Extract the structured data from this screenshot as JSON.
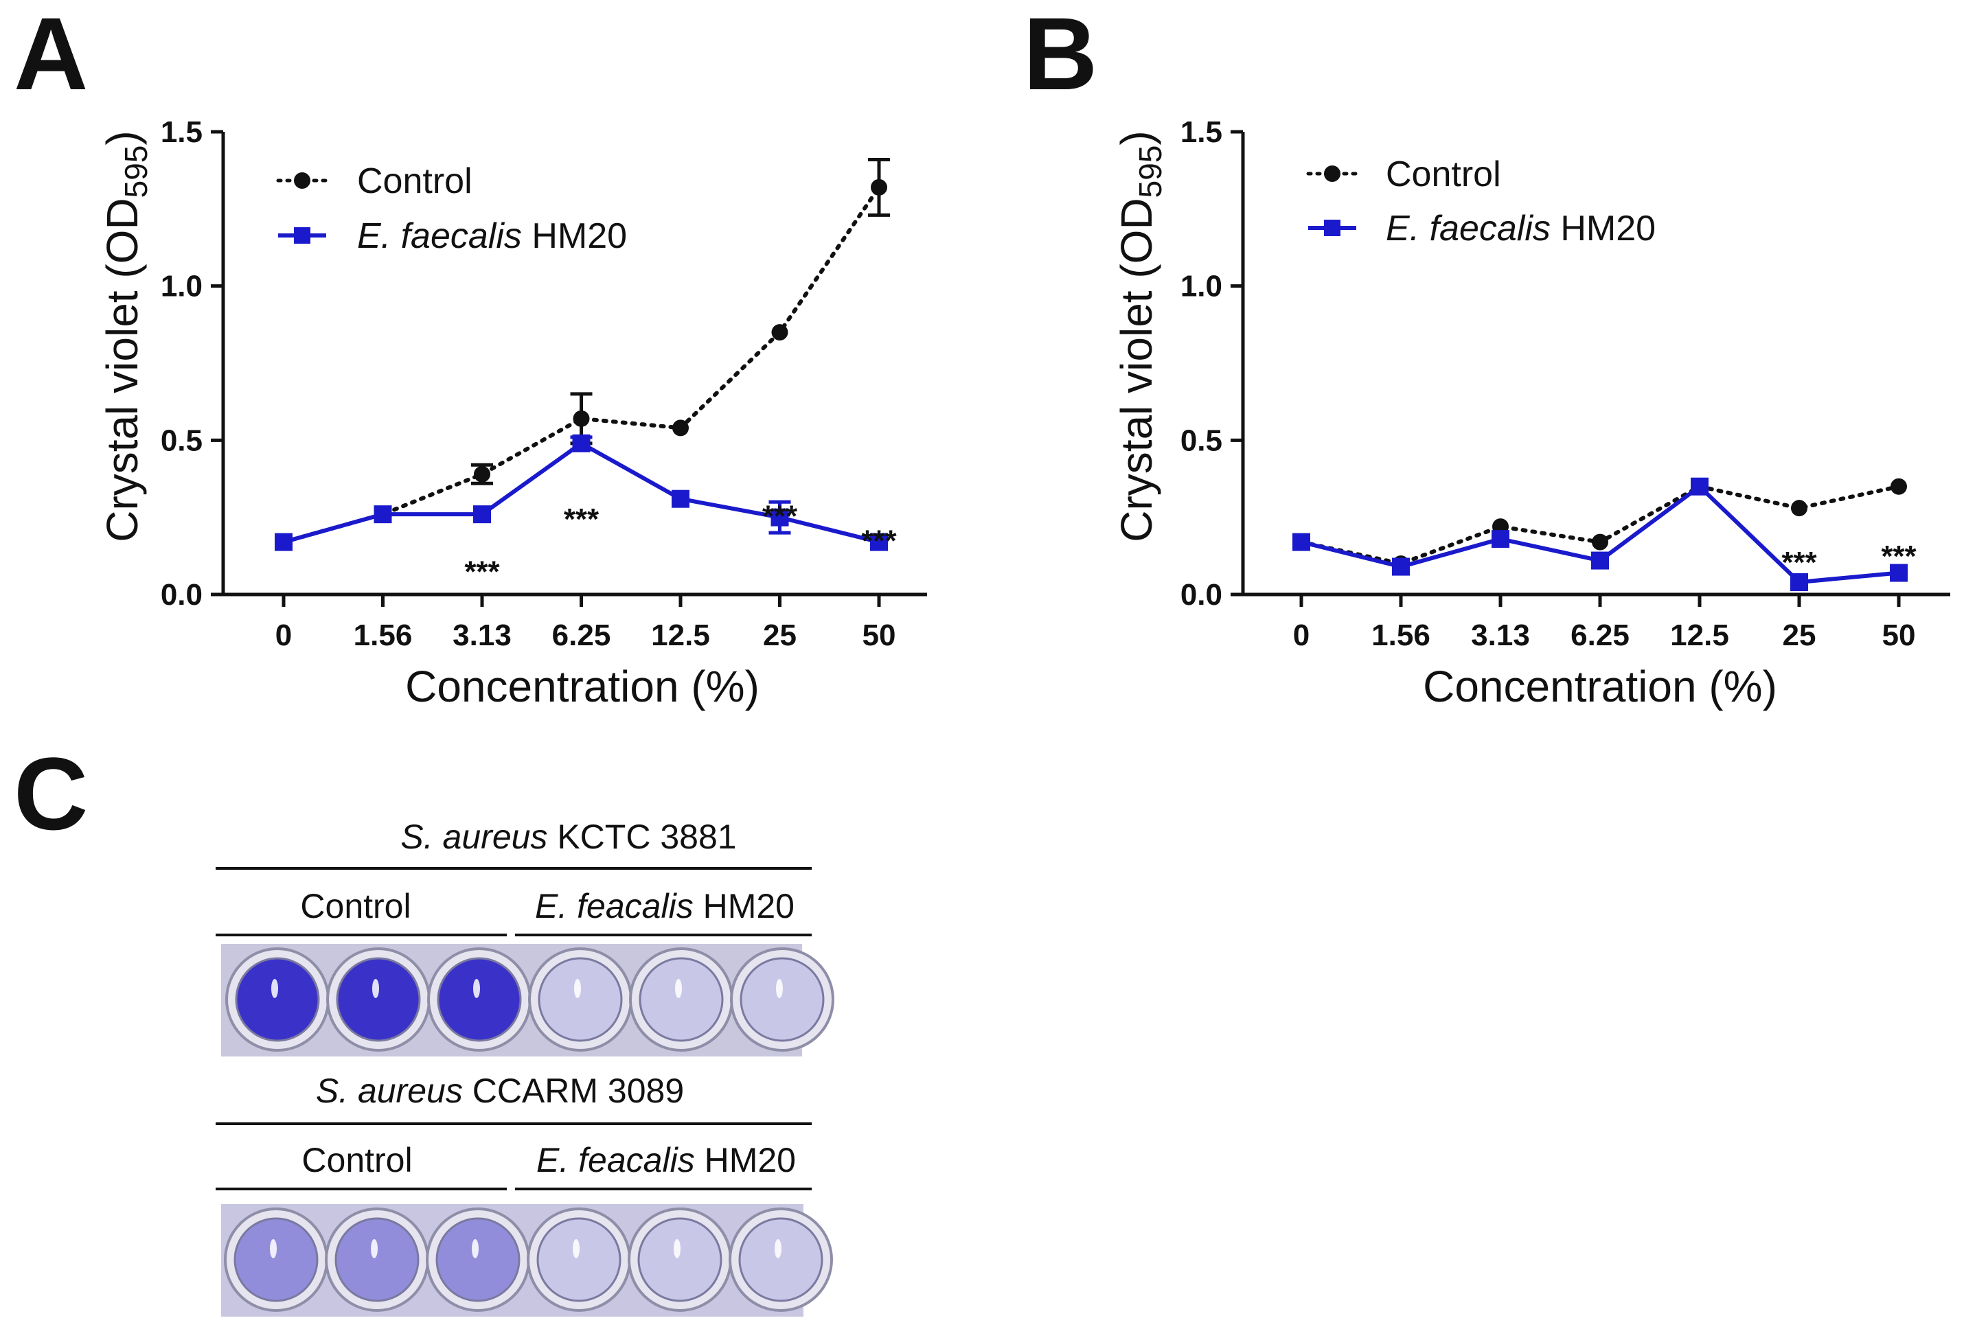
{
  "colors": {
    "control": "#111111",
    "treated": "#1a1acc",
    "well_stained": "#3a32c8",
    "well_clear": "#d9d7ea",
    "plate_bg_1": "#c9c8dc",
    "plate_bg_2": "#c4c3e0"
  },
  "chart_data": [
    {
      "id": "A",
      "panel_label": "A",
      "type": "line",
      "categories": [
        "0",
        "1.56",
        "3.13",
        "6.25",
        "12.5",
        "25",
        "50"
      ],
      "xlabel": "Concentration (%)",
      "ylabel_main": "Crystal violet (OD",
      "ylabel_sub": "595",
      "ylabel_close": ")",
      "ylim": [
        0,
        1.5
      ],
      "yticks": [
        "0.0",
        "0.5",
        "1.0",
        "1.5"
      ],
      "ytick_values": [
        0,
        0.5,
        1.0,
        1.5
      ],
      "legend": [
        {
          "italic": "",
          "rest": "Control"
        },
        {
          "italic": "E. faecalis",
          "rest": " HM20"
        }
      ],
      "series": [
        {
          "name": "Control",
          "style": "dotted",
          "marker": "circle",
          "values": [
            0.17,
            0.26,
            0.39,
            0.57,
            0.54,
            0.85,
            1.32
          ],
          "errors": [
            0,
            0,
            0.03,
            0.08,
            0,
            0,
            0.09
          ]
        },
        {
          "name": "E. faecalis HM20",
          "style": "solid",
          "marker": "square",
          "values": [
            0.17,
            0.26,
            0.26,
            0.49,
            0.31,
            0.25,
            0.17
          ],
          "errors": [
            0,
            0,
            0,
            0.02,
            0,
            0.05,
            0
          ]
        }
      ],
      "annotations": [
        {
          "text": "***",
          "x_index": 2,
          "y": 0.09
        },
        {
          "text": "***",
          "x_index": 3,
          "y": 0.26
        },
        {
          "text": "***",
          "x_index": 5,
          "y": 0.27
        },
        {
          "text": "***",
          "x_index": 6,
          "y": 0.19
        }
      ]
    },
    {
      "id": "B",
      "panel_label": "B",
      "type": "line",
      "categories": [
        "0",
        "1.56",
        "3.13",
        "6.25",
        "12.5",
        "25",
        "50"
      ],
      "xlabel": "Concentration (%)",
      "ylabel_main": "Crystal violet (OD",
      "ylabel_sub": "595",
      "ylabel_close": ")",
      "ylim": [
        0,
        1.5
      ],
      "yticks": [
        "0.0",
        "0.5",
        "1.0",
        "1.5"
      ],
      "ytick_values": [
        0,
        0.5,
        1.0,
        1.5
      ],
      "legend": [
        {
          "italic": "",
          "rest": "Control"
        },
        {
          "italic": "E. faecalis",
          "rest": " HM20"
        }
      ],
      "series": [
        {
          "name": "Control",
          "style": "dotted",
          "marker": "circle",
          "values": [
            0.17,
            0.1,
            0.22,
            0.17,
            0.35,
            0.28,
            0.35
          ],
          "errors": [
            0,
            0,
            0,
            0,
            0,
            0,
            0
          ]
        },
        {
          "name": "E. faecalis HM20",
          "style": "solid",
          "marker": "square",
          "values": [
            0.17,
            0.09,
            0.18,
            0.11,
            0.35,
            0.04,
            0.07
          ],
          "errors": [
            0,
            0,
            0,
            0,
            0,
            0,
            0
          ]
        }
      ],
      "annotations": [
        {
          "text": "***",
          "x_index": 5,
          "y": 0.12
        },
        {
          "text": "***",
          "x_index": 6,
          "y": 0.14
        }
      ]
    }
  ],
  "panel_c": {
    "panel_label": "C",
    "plates": [
      {
        "strain_italic": "S. aureus",
        "strain_rest": " KCTC 3881",
        "group_control": "Control",
        "group_treated_italic": "E. feacalis",
        "group_treated_rest": " HM20",
        "wells": [
          "stained",
          "stained",
          "stained",
          "clear",
          "clear",
          "clear"
        ],
        "stain_intensity": [
          1,
          1,
          1,
          0.1,
          0.1,
          0.1
        ]
      },
      {
        "strain_italic": "S. aureus",
        "strain_rest": " CCARM 3089",
        "group_control": "Control",
        "group_treated_italic": "E. feacalis",
        "group_treated_rest": " HM20",
        "wells": [
          "stained",
          "stained",
          "stained",
          "clear",
          "clear",
          "clear"
        ],
        "stain_intensity": [
          0.45,
          0.45,
          0.45,
          0.1,
          0.1,
          0.1
        ]
      }
    ]
  }
}
